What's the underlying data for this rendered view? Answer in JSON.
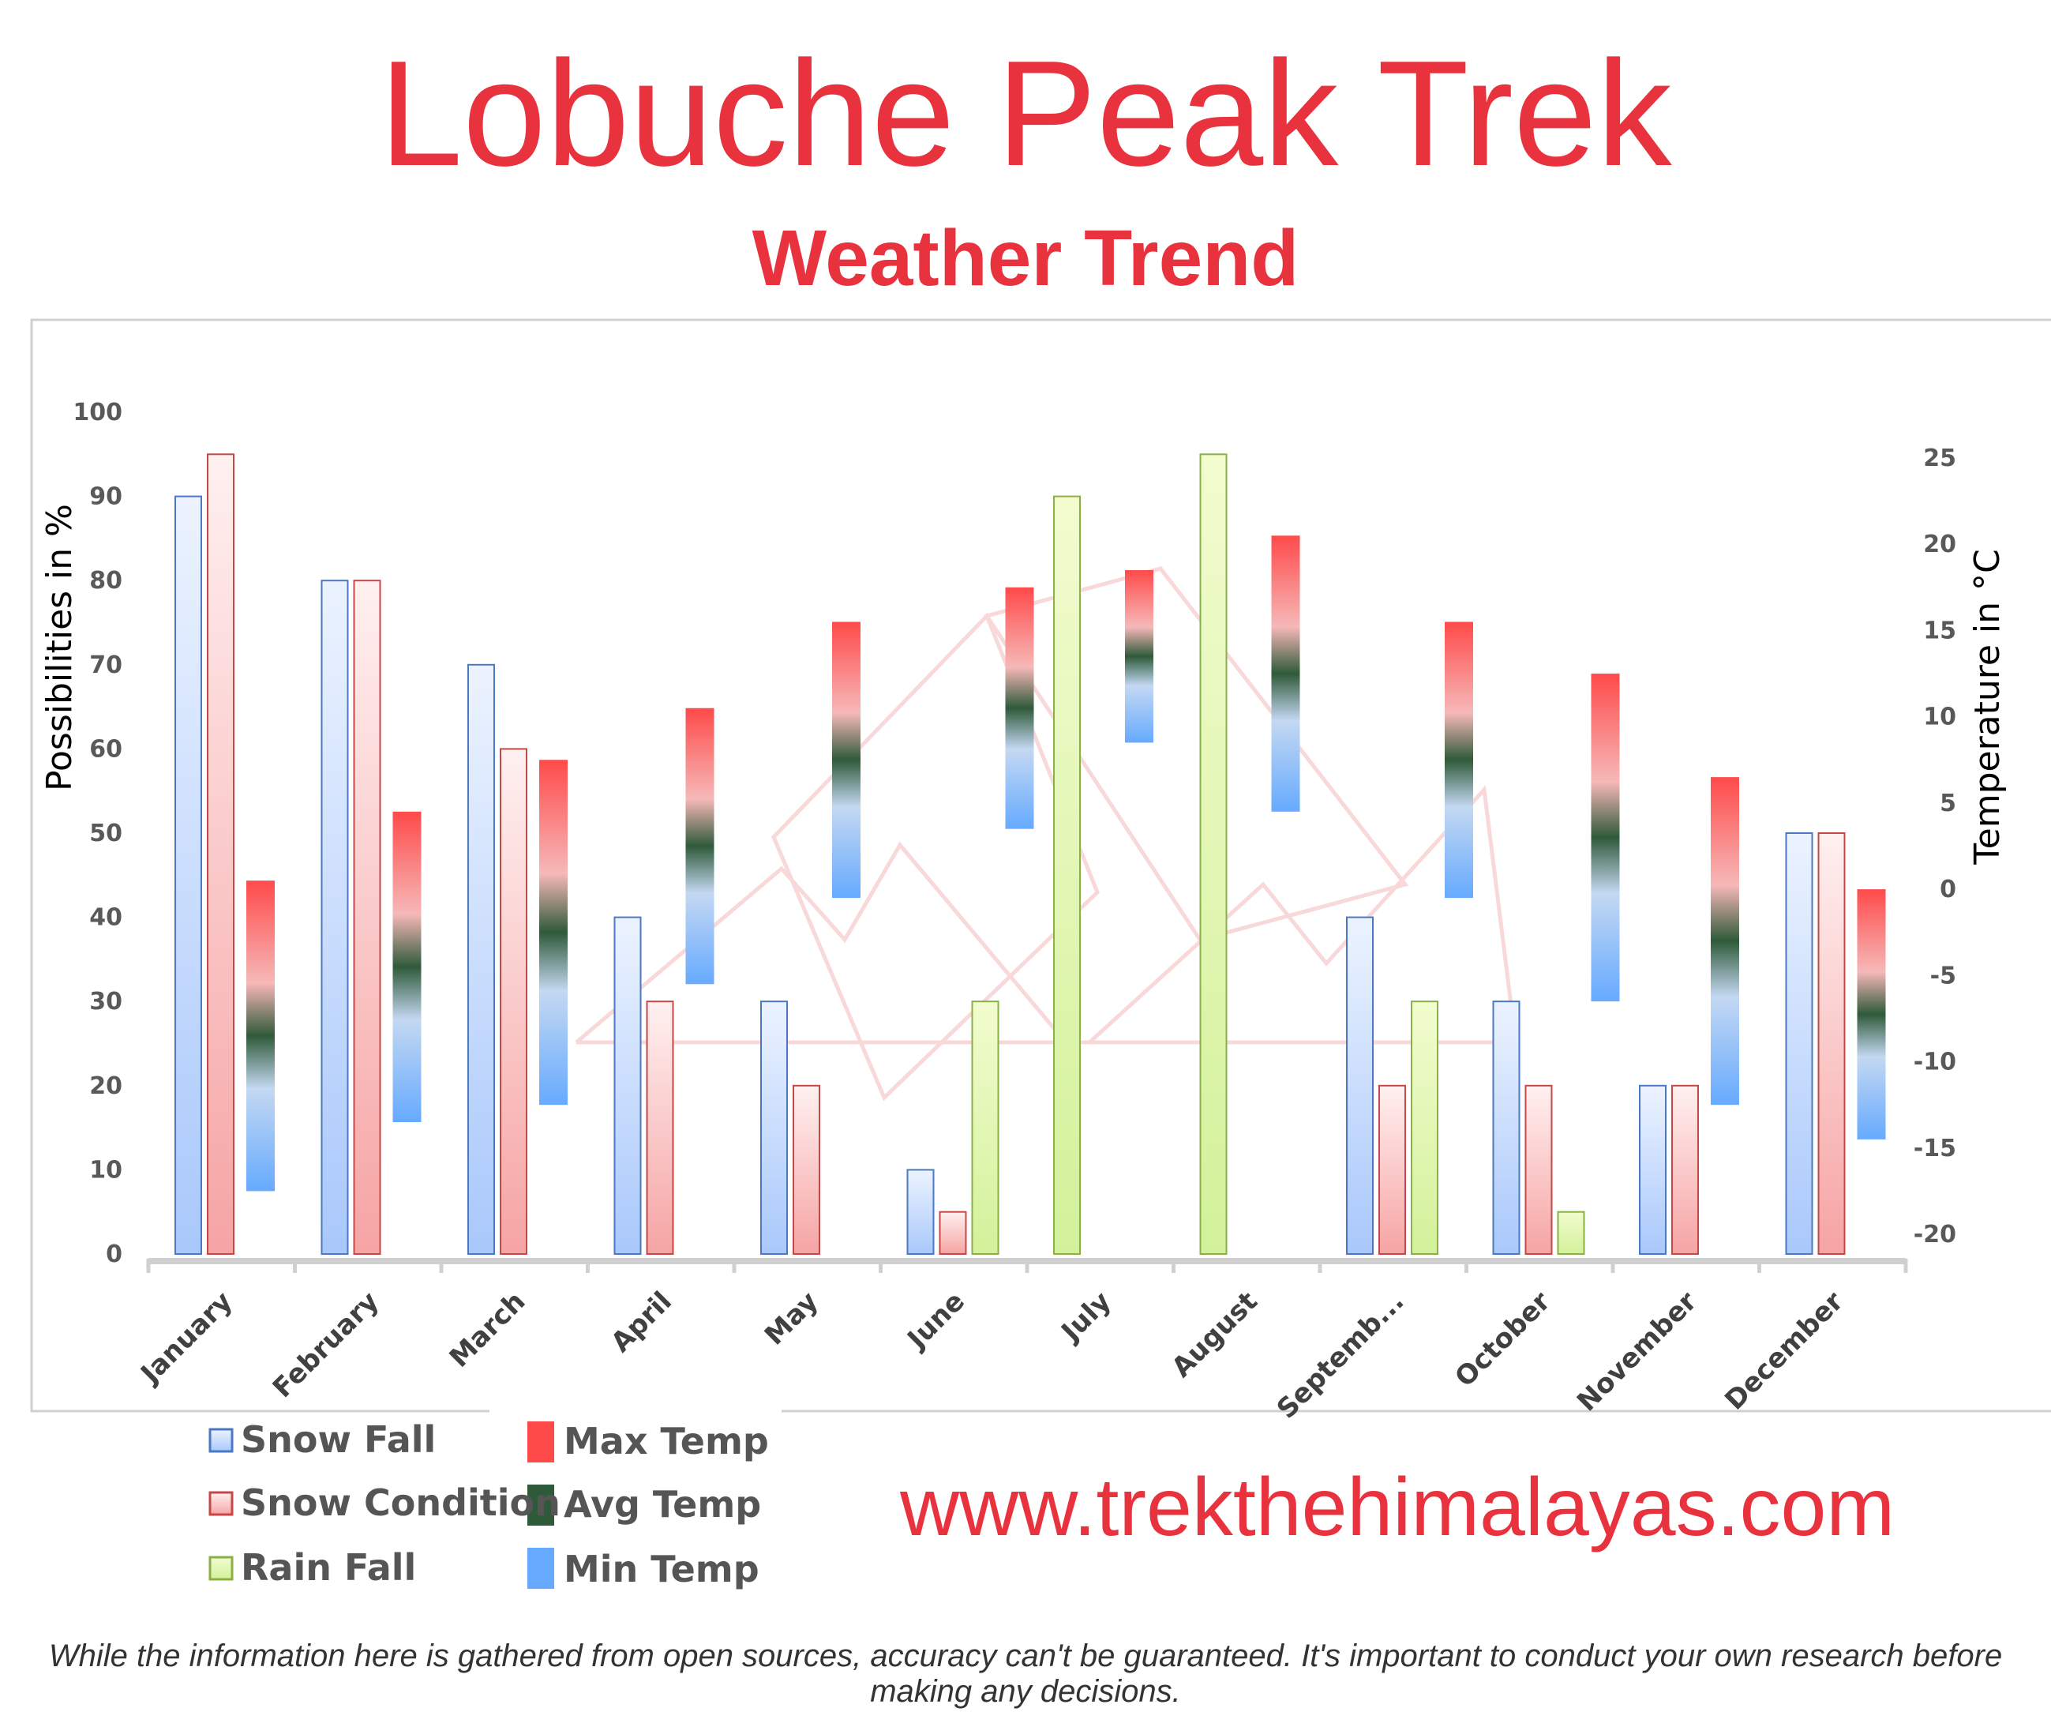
{
  "title": "Lobuche Peak Trek",
  "subtitle": "Weather Trend",
  "website": "www.trekthehimalayas.com",
  "disclaimer": "While the information here is gathered from open sources, accuracy can't be guaranteed. It's important to conduct your own research before making any decisions.",
  "colors": {
    "title": "#e8333f",
    "snow_fall": "#7da7e8",
    "snow_condition": "#f08a8a",
    "rain_fall": "#c8ec8a",
    "max_temp": "#ff4444",
    "avg_temp": "#2f5a3a",
    "min_temp": "#66aaff"
  },
  "chart_data": {
    "type": "bar",
    "ylabel": "Possibilities in %",
    "y2label": "Temperature in °C",
    "ylim": [
      0,
      100
    ],
    "y2lim": [
      -20,
      25
    ],
    "yticks": [
      "0",
      "10",
      "20",
      "30",
      "40",
      "50",
      "60",
      "70",
      "80",
      "90",
      "100"
    ],
    "y2ticks": [
      "-20",
      "-15",
      "-10",
      "-5",
      "0",
      "5",
      "10",
      "15",
      "20",
      "25"
    ],
    "categories": [
      "January",
      "February",
      "March",
      "April",
      "May",
      "June",
      "July",
      "August",
      "Septemb...",
      "October",
      "November",
      "December"
    ],
    "series": [
      {
        "name": "Snow Fall",
        "values": [
          90,
          80,
          70,
          40,
          30,
          10,
          0,
          0,
          40,
          30,
          20,
          50
        ]
      },
      {
        "name": "Snow Condition",
        "values": [
          95,
          80,
          60,
          30,
          20,
          5,
          0,
          0,
          20,
          20,
          20,
          50
        ]
      },
      {
        "name": "Rain Fall",
        "values": [
          0,
          0,
          0,
          0,
          0,
          30,
          90,
          95,
          30,
          5,
          0,
          0
        ]
      }
    ],
    "temperature": {
      "max": [
        0.5,
        4.5,
        7.5,
        10.5,
        15.5,
        17.5,
        18.5,
        20.5,
        15.5,
        12.5,
        6.5,
        0
      ],
      "min": [
        -17.5,
        -13.5,
        -12.5,
        -5.5,
        -0.5,
        3.5,
        8.5,
        4.5,
        -0.5,
        -6.5,
        -12.5,
        -14.5
      ]
    },
    "legend": {
      "left": [
        "Snow Fall",
        "Snow Condition",
        "Rain Fall"
      ],
      "right": [
        "Max Temp",
        "Avg Temp",
        "Min Temp"
      ]
    },
    "legend_position": "bottom-left",
    "grid": false
  }
}
